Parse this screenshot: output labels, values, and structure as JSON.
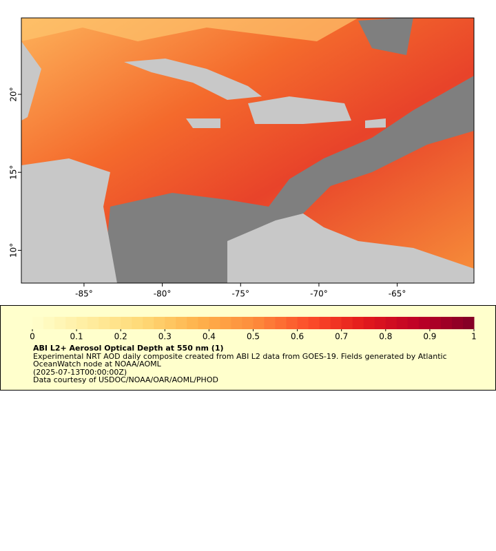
{
  "map": {
    "xlim": [
      -89,
      -60.1
    ],
    "ylim": [
      7.9,
      24.9
    ],
    "xticks": [
      {
        "value": -85,
        "label": "-85°"
      },
      {
        "value": -80,
        "label": "-80°"
      },
      {
        "value": -75,
        "label": "-75°"
      },
      {
        "value": -70,
        "label": "-70°"
      },
      {
        "value": -65,
        "label": "-65°"
      }
    ],
    "yticks": [
      {
        "value": 10,
        "label": "10°"
      },
      {
        "value": 15,
        "label": "15°"
      },
      {
        "value": 20,
        "label": "20°"
      }
    ]
  },
  "colorbar": {
    "range": [
      0,
      1
    ],
    "ticks": [
      0,
      0.1,
      0.2,
      0.3,
      0.4,
      0.5,
      0.6,
      0.7,
      0.8,
      0.9,
      1
    ],
    "colors": [
      "#ffffcc",
      "#ffeda0",
      "#fed976",
      "#feb24c",
      "#fd8d3c",
      "#fc4e2a",
      "#e31a1c",
      "#bd0026",
      "#800026"
    ]
  },
  "legend": {
    "title": "ABI L2+ Aerosol Optical Depth at 550 nm (1)",
    "lines": [
      "Experimental NRT AOD daily composite created from ABI L2 data from GOES-19. Fields generated by Atlantic OceanWatch node at NOAA/AOML",
      "(2025-07-13T00:00:00Z)",
      "Data courtesy of USDOC/NOAA/OAR/AOML/PHOD"
    ]
  }
}
